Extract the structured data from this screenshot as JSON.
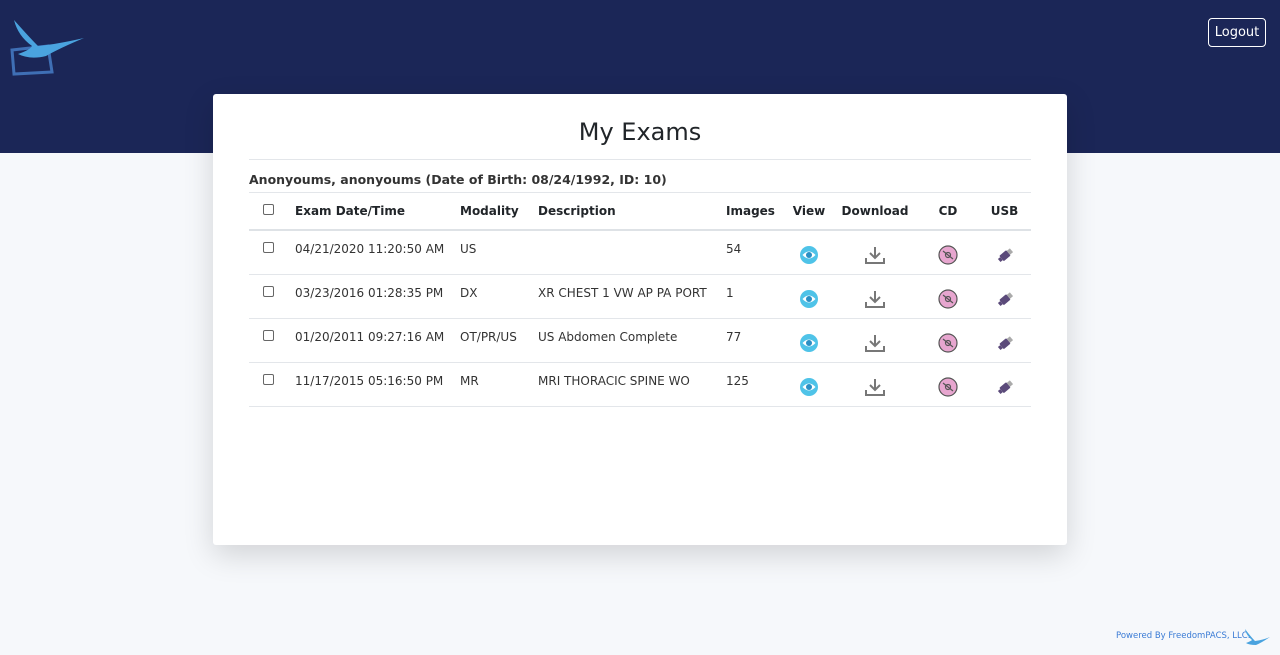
{
  "header": {
    "logout": "Logout"
  },
  "title": "My Exams",
  "patient": "Anonyoums, anonyoums (Date of Birth: 08/24/1992, ID: 10)",
  "table": {
    "columns": [
      "Exam Date/Time",
      "Modality",
      "Description",
      "Images",
      "View",
      "Download",
      "CD",
      "USB"
    ],
    "rows": [
      [
        "04/21/2020 11:20:50 AM",
        "US",
        null,
        54
      ],
      [
        "03/23/2016 01:28:35 PM",
        "DX",
        "XR CHEST 1 VW AP PA PORT",
        1
      ],
      [
        "01/20/2011 09:27:16 AM",
        "OT/PR/US",
        "US Abdomen Complete",
        77
      ],
      [
        "11/17/2015 05:16:50 PM",
        "MR",
        "MRI THORACIC SPINE WO",
        125
      ]
    ]
  },
  "footer": "Powered By FreedomPACS, LLC."
}
